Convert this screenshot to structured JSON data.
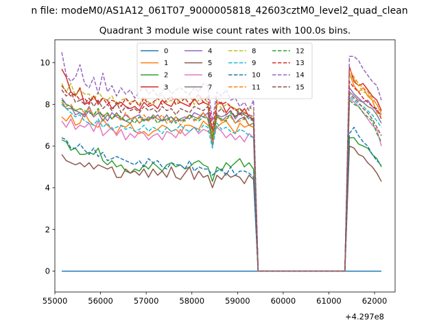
{
  "figure": {
    "suptitle": "n file: modeM0/AS1A12_061T07_9000005818_42603cztM0_level2_quad_clean"
  },
  "chart_data": {
    "type": "line",
    "title": "Quadrant 3 module wise count rates with 100.0s bins.",
    "xlabel": "",
    "ylabel": "",
    "x_offset_label": "+4.297e8",
    "xlim": [
      55000,
      62450
    ],
    "ylim": [
      -1.0,
      11.1
    ],
    "xticks": [
      55000,
      56000,
      57000,
      58000,
      59000,
      60000,
      61000,
      62000
    ],
    "yticks": [
      0,
      2,
      4,
      6,
      8,
      10
    ],
    "grid": false,
    "legend": {
      "placement": "top-center",
      "ncol": 4
    },
    "x": [
      55150,
      55250,
      55350,
      55450,
      55550,
      55650,
      55750,
      55850,
      55950,
      56050,
      56150,
      56250,
      56350,
      56450,
      56550,
      56650,
      56750,
      56850,
      56950,
      57050,
      57150,
      57250,
      57350,
      57450,
      57550,
      57650,
      57750,
      57850,
      57950,
      58050,
      58150,
      58250,
      58350,
      58450,
      58550,
      58650,
      58750,
      58850,
      58950,
      59050,
      59150,
      59250,
      59350,
      59450,
      59550,
      59650,
      59750,
      59850,
      59950,
      60050,
      60150,
      60250,
      60350,
      60450,
      60550,
      60650,
      60750,
      60850,
      60950,
      61050,
      61150,
      61250,
      61350,
      61450,
      61550,
      61650,
      61750,
      61850,
      61950,
      62050,
      62150
    ],
    "series": [
      {
        "name": "0",
        "color": "#1f77b4",
        "dash": "solid",
        "values": [
          0,
          0,
          0,
          0,
          0,
          0,
          0,
          0,
          0,
          0,
          0,
          0,
          0,
          0,
          0,
          0,
          0,
          0,
          0,
          0,
          0,
          0,
          0,
          0,
          0,
          0,
          0,
          0,
          0,
          0,
          0,
          0,
          0,
          0,
          0,
          0,
          0,
          0,
          0,
          0,
          0,
          0,
          0,
          0,
          0,
          0,
          0,
          0,
          0,
          0,
          0,
          0,
          0,
          0,
          0,
          0,
          0,
          0,
          0,
          0,
          0,
          0,
          0,
          0,
          0,
          0,
          0,
          0,
          0,
          0,
          0
        ]
      },
      {
        "name": "1",
        "color": "#ff7f0e",
        "dash": "solid",
        "values": [
          7.4,
          7.2,
          7.5,
          7.0,
          7.1,
          7.6,
          7.2,
          7.0,
          6.9,
          7.3,
          7.0,
          6.8,
          6.6,
          7.0,
          6.9,
          7.1,
          6.7,
          6.6,
          6.7,
          6.5,
          6.7,
          6.8,
          7.0,
          6.9,
          6.7,
          6.8,
          6.6,
          7.0,
          7.0,
          6.9,
          6.8,
          7.2,
          7.0,
          6.8,
          6.9,
          7.1,
          7.2,
          6.9,
          6.6,
          7.1,
          6.9,
          7.0,
          6.9,
          0,
          0,
          0,
          0,
          0,
          0,
          0,
          0,
          0,
          0,
          0,
          0,
          0,
          0,
          0,
          0,
          0,
          0,
          0,
          0,
          9.5,
          8.9,
          8.6,
          8.8,
          8.4,
          8.2,
          7.6,
          7.5
        ]
      },
      {
        "name": "2",
        "color": "#2ca02c",
        "dash": "solid",
        "values": [
          6.3,
          6.2,
          5.8,
          5.9,
          5.6,
          5.6,
          5.7,
          5.6,
          5.9,
          5.3,
          5.1,
          5.3,
          5.0,
          5.1,
          4.8,
          4.7,
          4.9,
          4.8,
          5.1,
          4.9,
          5.2,
          5.0,
          4.8,
          5.1,
          5.2,
          5.0,
          5.1,
          4.9,
          5.0,
          5.2,
          5.3,
          5.1,
          5.0,
          4.3,
          5.0,
          4.8,
          5.2,
          5.0,
          5.2,
          5.4,
          5.0,
          5.2,
          4.9,
          0,
          0,
          0,
          0,
          0,
          0,
          0,
          0,
          0,
          0,
          0,
          0,
          0,
          0,
          0,
          0,
          0,
          0,
          0,
          0,
          6.4,
          6.4,
          6.1,
          6.0,
          5.9,
          5.6,
          5.4,
          5.0
        ]
      },
      {
        "name": "3",
        "color": "#d62728",
        "dash": "solid",
        "values": [
          9.7,
          9.3,
          8.6,
          8.4,
          8.8,
          8.0,
          8.1,
          8.4,
          8.0,
          8.3,
          8.2,
          7.8,
          8.0,
          8.1,
          7.9,
          7.8,
          7.9,
          7.7,
          8.1,
          7.9,
          8.0,
          7.8,
          8.2,
          8.0,
          7.9,
          8.3,
          8.1,
          8.0,
          7.9,
          8.3,
          8.0,
          8.1,
          8.0,
          6.2,
          8.0,
          8.1,
          7.6,
          7.9,
          7.8,
          7.5,
          7.8,
          7.4,
          7.3,
          0,
          0,
          0,
          0,
          0,
          0,
          0,
          0,
          0,
          0,
          0,
          0,
          0,
          0,
          0,
          0,
          0,
          0,
          0,
          0,
          9.8,
          9.1,
          8.9,
          9.0,
          8.7,
          8.4,
          8.2,
          7.7
        ]
      },
      {
        "name": "4",
        "color": "#9467bd",
        "dash": "solid",
        "values": [
          8.3,
          8.0,
          7.9,
          7.5,
          7.6,
          7.4,
          7.7,
          7.4,
          7.6,
          7.5,
          7.2,
          7.6,
          7.4,
          7.3,
          7.5,
          7.3,
          7.4,
          7.5,
          7.2,
          7.4,
          7.3,
          7.5,
          7.2,
          7.3,
          7.4,
          7.2,
          7.3,
          7.4,
          7.3,
          7.6,
          7.5,
          7.4,
          7.6,
          6.0,
          7.5,
          7.4,
          7.5,
          7.7,
          7.3,
          7.6,
          7.5,
          7.4,
          7.2,
          0,
          0,
          0,
          0,
          0,
          0,
          0,
          0,
          0,
          0,
          0,
          0,
          0,
          0,
          0,
          0,
          0,
          0,
          0,
          0,
          8.8,
          8.5,
          8.3,
          8.1,
          8.2,
          7.9,
          7.7,
          7.5
        ]
      },
      {
        "name": "5",
        "color": "#8c564b",
        "dash": "solid",
        "values": [
          5.6,
          5.3,
          5.2,
          5.1,
          5.2,
          5.0,
          5.2,
          4.9,
          5.1,
          5.0,
          4.9,
          5.0,
          4.5,
          4.5,
          4.9,
          4.7,
          4.8,
          4.6,
          4.9,
          4.5,
          4.9,
          4.6,
          4.8,
          4.5,
          5.0,
          4.5,
          4.4,
          4.7,
          5.0,
          4.4,
          4.8,
          4.5,
          4.6,
          4.0,
          4.6,
          4.4,
          4.7,
          4.5,
          4.6,
          4.5,
          4.2,
          4.6,
          4.4,
          0,
          0,
          0,
          0,
          0,
          0,
          0,
          0,
          0,
          0,
          0,
          0,
          0,
          0,
          0,
          0,
          0,
          0,
          0,
          0,
          6.0,
          5.9,
          5.6,
          5.5,
          5.2,
          5.0,
          4.7,
          4.3
        ]
      },
      {
        "name": "6",
        "color": "#e377c2",
        "dash": "solid",
        "values": [
          7.2,
          6.9,
          7.3,
          6.8,
          7.0,
          6.9,
          7.1,
          6.7,
          7.2,
          6.5,
          6.7,
          6.9,
          6.5,
          6.8,
          6.3,
          6.6,
          6.4,
          6.7,
          6.6,
          6.3,
          6.5,
          6.6,
          6.3,
          6.7,
          6.6,
          6.4,
          6.8,
          6.5,
          6.7,
          6.9,
          6.6,
          6.8,
          6.7,
          6.5,
          6.9,
          6.7,
          6.4,
          6.6,
          6.3,
          6.5,
          6.2,
          6.6,
          6.4,
          0,
          0,
          0,
          0,
          0,
          0,
          0,
          0,
          0,
          0,
          0,
          0,
          0,
          0,
          0,
          0,
          0,
          0,
          0,
          0,
          8.3,
          8.1,
          7.9,
          7.6,
          7.3,
          7.0,
          6.8,
          6.0
        ]
      },
      {
        "name": "7",
        "color": "#7f7f7f",
        "dash": "solid",
        "values": [
          8.1,
          7.8,
          7.8,
          7.7,
          7.6,
          7.5,
          7.9,
          7.4,
          7.6,
          7.2,
          7.5,
          7.3,
          7.6,
          7.3,
          7.2,
          7.1,
          7.4,
          7.1,
          7.3,
          7.2,
          7.5,
          7.3,
          7.2,
          7.5,
          7.1,
          7.4,
          7.2,
          7.3,
          7.5,
          7.4,
          7.3,
          7.6,
          7.3,
          6.1,
          7.5,
          7.2,
          7.4,
          7.5,
          7.1,
          7.3,
          7.4,
          7.0,
          7.1,
          0,
          0,
          0,
          0,
          0,
          0,
          0,
          0,
          0,
          0,
          0,
          0,
          0,
          0,
          0,
          0,
          0,
          0,
          0,
          0,
          8.6,
          8.4,
          8.2,
          8.1,
          7.9,
          7.8,
          7.5,
          7.1
        ]
      },
      {
        "name": "8",
        "color": "#bcbd22",
        "dash": "dashed",
        "values": [
          9.0,
          8.6,
          9.0,
          8.4,
          8.7,
          8.5,
          8.5,
          8.2,
          8.6,
          8.3,
          8.2,
          8.4,
          8.0,
          8.2,
          8.3,
          8.1,
          8.2,
          8.0,
          8.4,
          8.1,
          8.0,
          8.3,
          8.5,
          8.1,
          8.2,
          8.0,
          8.3,
          8.2,
          8.5,
          8.0,
          8.2,
          8.3,
          8.1,
          6.5,
          8.1,
          7.8,
          8.0,
          7.9,
          7.8,
          7.8,
          7.6,
          7.9,
          7.7,
          0,
          0,
          0,
          0,
          0,
          0,
          0,
          0,
          0,
          0,
          0,
          0,
          0,
          0,
          0,
          0,
          0,
          0,
          0,
          0,
          9.4,
          9.2,
          8.9,
          8.6,
          8.5,
          8.2,
          8.0,
          7.5
        ]
      },
      {
        "name": "9",
        "color": "#17becf",
        "dash": "dashed",
        "values": [
          8.0,
          7.8,
          7.6,
          7.4,
          7.5,
          7.2,
          7.1,
          7.0,
          7.3,
          6.9,
          7.1,
          6.8,
          6.9,
          7.0,
          6.8,
          6.9,
          6.7,
          6.8,
          7.0,
          6.7,
          6.9,
          6.8,
          6.6,
          6.9,
          6.7,
          6.8,
          7.0,
          6.8,
          6.7,
          6.9,
          6.7,
          7.0,
          6.9,
          5.9,
          7.1,
          6.8,
          6.9,
          6.7,
          6.6,
          6.8,
          6.7,
          6.5,
          6.4,
          0,
          0,
          0,
          0,
          0,
          0,
          0,
          0,
          0,
          0,
          0,
          0,
          0,
          0,
          0,
          0,
          0,
          0,
          0,
          0,
          8.4,
          8.2,
          8.0,
          7.9,
          7.7,
          7.5,
          7.2,
          6.9
        ]
      },
      {
        "name": "10",
        "color": "#1f77b4",
        "dash": "dashed",
        "values": [
          6.4,
          6.3,
          5.9,
          5.9,
          6.1,
          5.8,
          5.6,
          5.9,
          5.5,
          5.7,
          5.3,
          5.4,
          5.5,
          5.4,
          5.3,
          5.2,
          5.1,
          5.3,
          5.0,
          5.4,
          5.2,
          5.3,
          5.0,
          4.9,
          5.2,
          5.1,
          5.1,
          4.9,
          5.3,
          4.8,
          5.0,
          4.9,
          4.9,
          4.6,
          4.8,
          4.9,
          4.6,
          5.0,
          4.6,
          4.8,
          4.8,
          4.7,
          4.5,
          0,
          0,
          0,
          0,
          0,
          0,
          0,
          0,
          0,
          0,
          0,
          0,
          0,
          0,
          0,
          0,
          0,
          0,
          0,
          0,
          6.6,
          6.9,
          6.5,
          6.2,
          6.0,
          5.6,
          5.3,
          5.1
        ]
      },
      {
        "name": "11",
        "color": "#ff7f0e",
        "dash": "dashed",
        "values": [
          8.1,
          7.9,
          8.0,
          7.7,
          7.8,
          7.6,
          7.8,
          7.5,
          7.7,
          7.4,
          7.6,
          7.3,
          7.5,
          7.2,
          7.6,
          7.3,
          7.4,
          7.1,
          7.5,
          7.2,
          7.4,
          7.3,
          7.5,
          7.1,
          7.2,
          7.4,
          7.0,
          7.3,
          7.5,
          7.2,
          7.4,
          7.6,
          7.3,
          6.2,
          7.4,
          7.2,
          7.3,
          7.4,
          7.1,
          7.2,
          7.3,
          7.0,
          6.9,
          0,
          0,
          0,
          0,
          0,
          0,
          0,
          0,
          0,
          0,
          0,
          0,
          0,
          0,
          0,
          0,
          0,
          0,
          0,
          0,
          9.7,
          9.3,
          9.0,
          8.8,
          8.6,
          8.3,
          8.0,
          7.6
        ]
      },
      {
        "name": "12",
        "color": "#2ca02c",
        "dash": "dashed",
        "values": [
          8.2,
          8.0,
          7.9,
          7.7,
          7.8,
          7.7,
          7.6,
          7.5,
          7.8,
          7.4,
          7.6,
          7.3,
          7.5,
          7.4,
          7.2,
          7.3,
          7.1,
          7.4,
          7.2,
          7.3,
          7.4,
          7.1,
          7.3,
          7.2,
          7.4,
          7.1,
          7.3,
          7.2,
          7.5,
          7.3,
          7.2,
          7.4,
          7.3,
          6.4,
          7.4,
          7.3,
          7.2,
          7.6,
          7.4,
          7.8,
          7.5,
          7.3,
          7.2,
          0,
          0,
          0,
          0,
          0,
          0,
          0,
          0,
          0,
          0,
          0,
          0,
          0,
          0,
          0,
          0,
          0,
          0,
          0,
          0,
          8.2,
          8.0,
          7.9,
          7.6,
          7.4,
          7.2,
          6.6,
          6.2
        ]
      },
      {
        "name": "13",
        "color": "#d62728",
        "dash": "dashed",
        "values": [
          8.9,
          8.6,
          8.4,
          8.5,
          8.2,
          8.3,
          8.0,
          8.4,
          8.1,
          8.3,
          8.0,
          8.2,
          8.1,
          7.9,
          8.3,
          8.0,
          8.2,
          7.9,
          8.3,
          8.0,
          8.1,
          8.3,
          8.0,
          8.2,
          8.4,
          8.0,
          8.1,
          8.3,
          8.0,
          8.2,
          8.5,
          8.1,
          8.4,
          6.8,
          8.2,
          8.0,
          8.1,
          7.9,
          7.7,
          7.8,
          7.6,
          7.5,
          7.4,
          0,
          0,
          0,
          0,
          0,
          0,
          0,
          0,
          0,
          0,
          0,
          0,
          0,
          0,
          0,
          0,
          0,
          0,
          0,
          0,
          9.1,
          8.8,
          8.6,
          8.3,
          8.1,
          7.9,
          7.8,
          7.3
        ]
      },
      {
        "name": "14",
        "color": "#9467bd",
        "dash": "dashed",
        "values": [
          10.5,
          9.4,
          9.1,
          9.3,
          9.9,
          9.0,
          8.8,
          9.3,
          8.5,
          9.5,
          8.6,
          8.9,
          8.4,
          8.8,
          8.5,
          8.7,
          8.3,
          8.6,
          8.9,
          8.5,
          8.7,
          8.4,
          8.6,
          8.9,
          8.5,
          8.7,
          8.8,
          8.6,
          8.5,
          8.8,
          8.6,
          9.0,
          8.9,
          7.2,
          8.6,
          8.4,
          8.7,
          8.2,
          8.3,
          7.9,
          8.1,
          7.7,
          8.2,
          0,
          0,
          0,
          0,
          0,
          0,
          0,
          0,
          0,
          0,
          0,
          0,
          0,
          0,
          0,
          0,
          0,
          0,
          0,
          0,
          10.3,
          10.3,
          10.1,
          9.7,
          9.4,
          9.1,
          8.9,
          8.2
        ]
      },
      {
        "name": "15",
        "color": "#8c564b",
        "dash": "dashed",
        "values": [
          8.7,
          8.4,
          8.6,
          8.1,
          8.2,
          8.0,
          8.3,
          7.9,
          8.2,
          7.8,
          8.0,
          7.7,
          8.1,
          7.6,
          7.9,
          7.7,
          7.8,
          7.6,
          7.9,
          7.7,
          7.8,
          7.6,
          7.9,
          7.7,
          7.8,
          7.5,
          7.8,
          7.7,
          7.6,
          7.9,
          7.8,
          7.7,
          7.9,
          6.7,
          7.6,
          7.8,
          7.5,
          7.7,
          7.4,
          7.6,
          7.3,
          7.5,
          7.2,
          0,
          0,
          0,
          0,
          0,
          0,
          0,
          0,
          0,
          0,
          0,
          0,
          0,
          0,
          0,
          0,
          0,
          0,
          0,
          0,
          8.5,
          8.3,
          8.1,
          7.8,
          7.6,
          7.3,
          6.9,
          6.5
        ]
      }
    ]
  }
}
